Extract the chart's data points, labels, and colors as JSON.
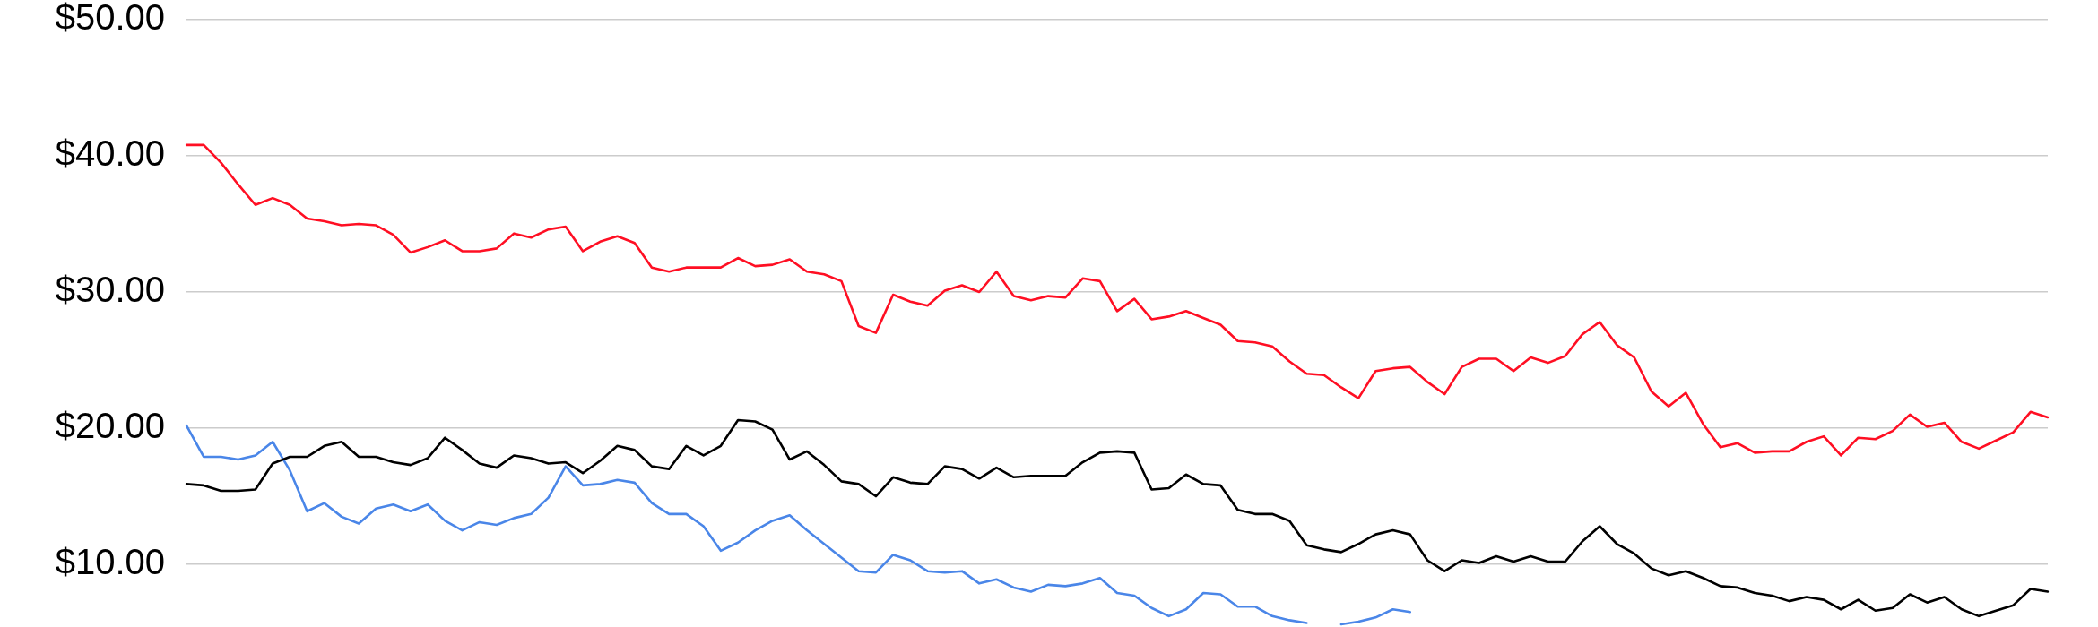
{
  "chart_data": {
    "type": "line",
    "categories": [
      null,
      null,
      null,
      null,
      null,
      null,
      null,
      null,
      null,
      null,
      null,
      null,
      null,
      null,
      null,
      null,
      null,
      null,
      null,
      null,
      null,
      null,
      null,
      null,
      null,
      null,
      null,
      null,
      null,
      null,
      null,
      null,
      null,
      null,
      null,
      null,
      null,
      null,
      null,
      null,
      null,
      null,
      null,
      null,
      null,
      null,
      null,
      null,
      null,
      null,
      null,
      null,
      null,
      null,
      null,
      null,
      null,
      null,
      null,
      null,
      null,
      null,
      null,
      null,
      null,
      null,
      null,
      null,
      null,
      null,
      null,
      null,
      null,
      null,
      null,
      null,
      null,
      null,
      null,
      null,
      null,
      null,
      null,
      null,
      null,
      null,
      null,
      null,
      null,
      null,
      null,
      null,
      null,
      null,
      null,
      null,
      null,
      null,
      null,
      null,
      null,
      null,
      null,
      null,
      null,
      null,
      null,
      null,
      null
    ],
    "ylim": [
      5.4,
      50
    ],
    "yticks": [
      {
        "value": 10,
        "label": "$10.00"
      },
      {
        "value": 20,
        "label": "$20.00"
      },
      {
        "value": 30,
        "label": "$30.00"
      },
      {
        "value": 40,
        "label": "$40.00"
      },
      {
        "value": 50,
        "label": "$50.00"
      }
    ],
    "tick_labels": "y",
    "grid": "y",
    "line_style": "solid",
    "series": [
      {
        "color": "#ff0f23",
        "values": [
          40.8,
          40.8,
          39.5,
          37.9,
          36.4,
          36.9,
          36.4,
          35.4,
          35.2,
          34.9,
          35.0,
          34.9,
          34.2,
          32.9,
          33.3,
          33.8,
          33.0,
          33.0,
          33.2,
          34.3,
          34.0,
          34.6,
          34.8,
          33.0,
          33.7,
          34.1,
          33.6,
          31.8,
          31.5,
          31.8,
          31.8,
          31.8,
          32.5,
          31.9,
          32.0,
          32.4,
          31.5,
          31.3,
          30.8,
          27.5,
          27.0,
          29.8,
          29.3,
          29.0,
          30.1,
          30.5,
          30.0,
          31.5,
          29.7,
          29.4,
          29.7,
          29.6,
          31.0,
          30.8,
          28.6,
          29.5,
          28.0,
          28.2,
          28.6,
          28.1,
          27.6,
          26.4,
          26.3,
          26.0,
          24.9,
          24.0,
          23.9,
          23.0,
          22.2,
          24.2,
          24.4,
          24.5,
          23.4,
          22.5,
          24.5,
          25.1,
          25.1,
          24.2,
          25.2,
          24.8,
          25.3,
          26.9,
          27.8,
          26.1,
          25.2,
          22.7,
          21.6,
          22.6,
          20.3,
          18.6,
          18.9,
          18.2,
          18.3,
          18.3,
          19.0,
          19.4,
          18.0,
          19.3,
          19.2,
          19.8,
          21.0,
          20.1,
          20.4,
          19.0,
          18.5,
          19.1,
          19.7,
          21.2,
          20.8
        ]
      },
      {
        "color": "#000000",
        "values": [
          15.9,
          15.8,
          15.4,
          15.4,
          15.5,
          17.4,
          17.9,
          17.9,
          18.7,
          19.0,
          17.9,
          17.9,
          17.5,
          17.3,
          17.8,
          19.3,
          18.4,
          17.4,
          17.1,
          18.0,
          17.8,
          17.4,
          17.5,
          16.7,
          17.6,
          18.7,
          18.4,
          17.2,
          17.0,
          18.7,
          18.0,
          18.7,
          20.6,
          20.5,
          19.9,
          17.7,
          18.3,
          17.3,
          16.1,
          15.9,
          15.0,
          16.4,
          16.0,
          15.9,
          17.2,
          17.0,
          16.3,
          17.1,
          16.4,
          16.5,
          16.5,
          16.5,
          17.5,
          18.2,
          18.3,
          18.2,
          15.5,
          15.6,
          16.6,
          15.9,
          15.8,
          14.0,
          13.7,
          13.7,
          13.2,
          11.4,
          11.1,
          10.9,
          11.5,
          12.2,
          12.5,
          12.2,
          10.3,
          9.5,
          10.3,
          10.1,
          10.6,
          10.2,
          10.6,
          10.2,
          10.2,
          11.7,
          12.8,
          11.5,
          10.8,
          9.7,
          9.2,
          9.5,
          9.0,
          8.4,
          8.3,
          7.9,
          7.7,
          7.3,
          7.6,
          7.4,
          6.7,
          7.4,
          6.6,
          6.8,
          7.8,
          7.2,
          7.6,
          6.7,
          6.2,
          6.6,
          7.0,
          8.2,
          8.0
        ]
      },
      {
        "color": "#4a86e8",
        "values": [
          20.2,
          17.9,
          17.9,
          17.7,
          18.0,
          19.0,
          16.9,
          13.9,
          14.5,
          13.5,
          13.0,
          14.1,
          14.4,
          13.9,
          14.4,
          13.2,
          12.5,
          13.1,
          12.9,
          13.4,
          13.7,
          14.9,
          17.2,
          15.8,
          15.9,
          16.2,
          16.0,
          14.5,
          13.7,
          13.7,
          12.8,
          11.0,
          11.6,
          12.5,
          13.2,
          13.6,
          12.5,
          11.5,
          10.5,
          9.5,
          9.4,
          10.7,
          10.3,
          9.5,
          9.4,
          9.5,
          8.6,
          8.9,
          8.3,
          8.0,
          8.5,
          8.4,
          8.6,
          9.0,
          7.9,
          7.7,
          6.8,
          6.2,
          6.7,
          7.9,
          7.8,
          6.9,
          6.9,
          6.2,
          5.9,
          5.7,
          null,
          5.6,
          5.8,
          6.1,
          6.7,
          6.5,
          null,
          null,
          null,
          null,
          null,
          null,
          null,
          null,
          null,
          null,
          null,
          null,
          null,
          null,
          null,
          null,
          null,
          null,
          null,
          null,
          null,
          null,
          null,
          null,
          null,
          null,
          null,
          null,
          null,
          null,
          null,
          null,
          null,
          null,
          null,
          null,
          null
        ]
      }
    ]
  }
}
